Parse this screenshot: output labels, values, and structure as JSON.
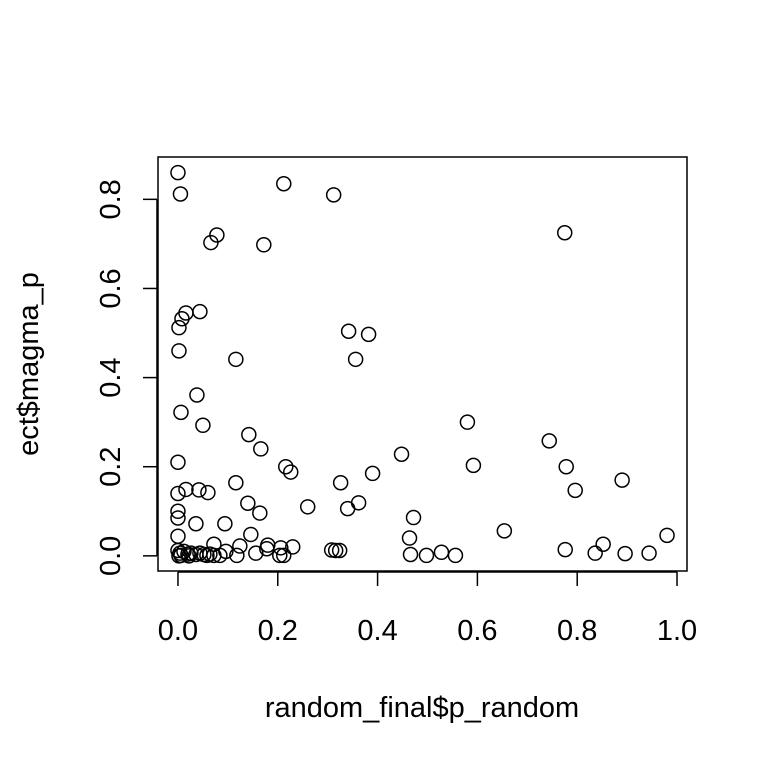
{
  "chart_data": {
    "type": "scatter",
    "title": "",
    "xlabel": "random_final$p_random",
    "ylabel": "ect$magma_p",
    "xlim": [
      -0.04,
      1.02
    ],
    "ylim": [
      -0.034,
      0.895
    ],
    "xticks": [
      0.0,
      0.2,
      0.4,
      0.6,
      0.8,
      1.0
    ],
    "xtick_labels": [
      "0.0",
      "0.2",
      "0.4",
      "0.6",
      "0.8",
      "1.0"
    ],
    "yticks": [
      0.0,
      0.2,
      0.4,
      0.6,
      0.8
    ],
    "ytick_labels": [
      "0.0",
      "0.2",
      "0.4",
      "0.6",
      "0.8"
    ],
    "grid": false,
    "marker": "open-circle",
    "colors": {
      "marker": "#000000",
      "axes": "#000000",
      "background": "#ffffff"
    },
    "points": [
      [
        0.0,
        0.86
      ],
      [
        0.005,
        0.812
      ],
      [
        0.212,
        0.835
      ],
      [
        0.312,
        0.81
      ],
      [
        0.078,
        0.72
      ],
      [
        0.066,
        0.703
      ],
      [
        0.172,
        0.698
      ],
      [
        0.775,
        0.725
      ],
      [
        0.016,
        0.545
      ],
      [
        0.044,
        0.548
      ],
      [
        0.008,
        0.532
      ],
      [
        0.002,
        0.512
      ],
      [
        0.342,
        0.504
      ],
      [
        0.382,
        0.497
      ],
      [
        0.002,
        0.46
      ],
      [
        0.116,
        0.441
      ],
      [
        0.356,
        0.441
      ],
      [
        0.038,
        0.361
      ],
      [
        0.006,
        0.322
      ],
      [
        0.05,
        0.293
      ],
      [
        0.58,
        0.3
      ],
      [
        0.142,
        0.272
      ],
      [
        0.166,
        0.24
      ],
      [
        0.744,
        0.258
      ],
      [
        0.0,
        0.21
      ],
      [
        0.216,
        0.2
      ],
      [
        0.226,
        0.188
      ],
      [
        0.448,
        0.228
      ],
      [
        0.592,
        0.203
      ],
      [
        0.778,
        0.2
      ],
      [
        0.89,
        0.17
      ],
      [
        0.39,
        0.185
      ],
      [
        0.116,
        0.164
      ],
      [
        0.326,
        0.164
      ],
      [
        0.0,
        0.14
      ],
      [
        0.016,
        0.149
      ],
      [
        0.042,
        0.148
      ],
      [
        0.06,
        0.142
      ],
      [
        0.796,
        0.147
      ],
      [
        0.14,
        0.118
      ],
      [
        0.362,
        0.119
      ],
      [
        0.34,
        0.106
      ],
      [
        0.26,
        0.11
      ],
      [
        0.164,
        0.096
      ],
      [
        0.0,
        0.1
      ],
      [
        0.0,
        0.085
      ],
      [
        0.472,
        0.086
      ],
      [
        0.036,
        0.072
      ],
      [
        0.094,
        0.072
      ],
      [
        0.654,
        0.056
      ],
      [
        0.98,
        0.046
      ],
      [
        0.0,
        0.044
      ],
      [
        0.146,
        0.048
      ],
      [
        0.464,
        0.04
      ],
      [
        0.072,
        0.026
      ],
      [
        0.124,
        0.022
      ],
      [
        0.18,
        0.024
      ],
      [
        0.23,
        0.02
      ],
      [
        0.178,
        0.016
      ],
      [
        0.206,
        0.018
      ],
      [
        0.852,
        0.026
      ],
      [
        0.308,
        0.013
      ],
      [
        0.316,
        0.012
      ],
      [
        0.324,
        0.012
      ],
      [
        0.776,
        0.014
      ],
      [
        0.0,
        0.012
      ],
      [
        0.004,
        0.006
      ],
      [
        0.012,
        0.01
      ],
      [
        0.02,
        0.004
      ],
      [
        0.026,
        0.006
      ],
      [
        0.036,
        0.003
      ],
      [
        0.044,
        0.006
      ],
      [
        0.052,
        0.003
      ],
      [
        0.058,
        0.001
      ],
      [
        0.064,
        0.004
      ],
      [
        0.072,
        0.001
      ],
      [
        0.084,
        0.001
      ],
      [
        0.096,
        0.01
      ],
      [
        0.118,
        0.001
      ],
      [
        0.156,
        0.006
      ],
      [
        0.204,
        0.001
      ],
      [
        0.212,
        0.001
      ],
      [
        0.466,
        0.003
      ],
      [
        0.498,
        0.001
      ],
      [
        0.528,
        0.008
      ],
      [
        0.556,
        0.001
      ],
      [
        0.836,
        0.006
      ],
      [
        0.896,
        0.005
      ],
      [
        0.944,
        0.006
      ],
      [
        0.002,
        0.0
      ],
      [
        0.006,
        0.001
      ],
      [
        0.022,
        0.0
      ]
    ]
  }
}
